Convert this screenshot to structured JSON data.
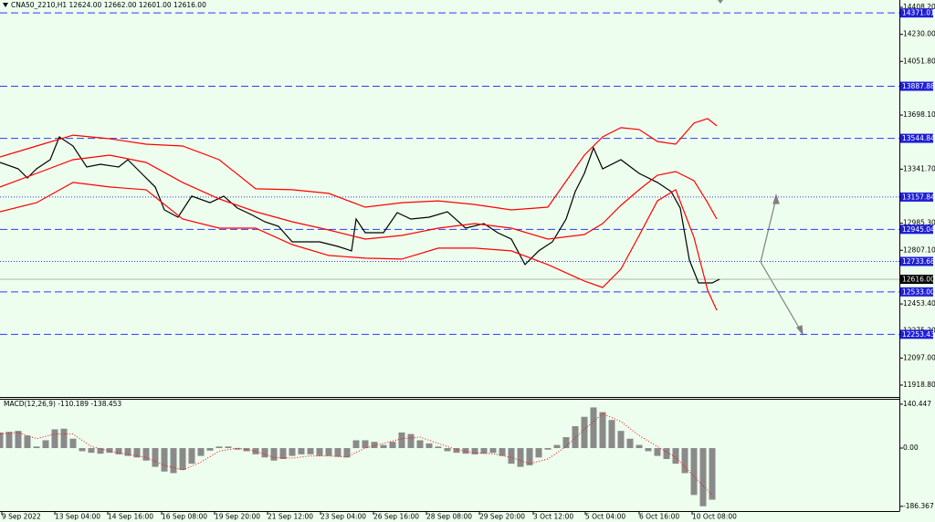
{
  "chart_data": [
    {
      "type": "line",
      "title": "CNA50_2210,H1 12624.00 12662.00 12601.00 12616.00",
      "xlim": [
        0,
        246.25
      ],
      "xticks": [
        {
          "value": 0.5,
          "label": "9 Sep 2022"
        },
        {
          "value": 15,
          "label": "13 Sep 04:00"
        },
        {
          "value": 29.5,
          "label": "14 Sep 16:00"
        },
        {
          "value": 44.25,
          "label": "16 Sep 08:00"
        },
        {
          "value": 58.75,
          "label": "19 Sep 20:00"
        },
        {
          "value": 73.25,
          "label": "21 Sep 12:00"
        },
        {
          "value": 87.75,
          "label": "23 Sep 04:00"
        },
        {
          "value": 102.25,
          "label": "26 Sep 16:00"
        },
        {
          "value": 116.75,
          "label": "28 Sep 08:00"
        },
        {
          "value": 131.25,
          "label": "29 Sep 20:00"
        },
        {
          "value": 146,
          "label": "3 Oct 12:00"
        },
        {
          "value": 160.25,
          "label": "5 Oct 04:00"
        },
        {
          "value": 175,
          "label": "6 Oct 16:00"
        },
        {
          "value": 189.5,
          "label": "10 Oct 08:00"
        }
      ],
      "ylim": [
        11840.5,
        14456.3
      ],
      "yticks": [
        {
          "value": 14408.2,
          "label": "14408.20"
        },
        {
          "value": 14230,
          "label": "14230.00"
        },
        {
          "value": 14051.8,
          "label": "14051.80"
        },
        {
          "value": 13698.1,
          "label": "13698.10"
        },
        {
          "value": 13341.7,
          "label": "13341.70"
        },
        {
          "value": 12985.3,
          "label": "12985.30"
        },
        {
          "value": 12807.1,
          "label": "12807.10"
        },
        {
          "value": 12453.4,
          "label": "12453.40"
        },
        {
          "value": 12275.2,
          "label": "12275.20"
        },
        {
          "value": 12097,
          "label": "12097.00"
        },
        {
          "value": 11918.8,
          "label": "11918.80"
        }
      ],
      "series": [
        {
          "color": "#000000",
          "style": "solid",
          "x": [
            0,
            5,
            7.5,
            10,
            13.75,
            16.25,
            20,
            23.75,
            27.5,
            32.5,
            35,
            38.75,
            42.5,
            45,
            48.75,
            52.5,
            57.5,
            61.25,
            65,
            68.75,
            72.5,
            76.25,
            80,
            87.5,
            92.5,
            96.25,
            97.5,
            100,
            105,
            108.75,
            112.5,
            117.5,
            122.5,
            127.5,
            132.5,
            136.25,
            140,
            143.75,
            147.5,
            151.25,
            155,
            157.5,
            160,
            162.5,
            165,
            170,
            175,
            180,
            183.75,
            186.25,
            188.75,
            191.25,
            195,
            197
          ],
          "values": [
            13386,
            13344,
            13284,
            13344,
            13404,
            13554,
            13494,
            13356,
            13374,
            13356,
            13404,
            13314,
            13224,
            13073,
            13025,
            13164,
            13121,
            13164,
            13085,
            13043,
            12995,
            12965,
            12863,
            12863,
            12833,
            12803,
            13013,
            12923,
            12923,
            13055,
            13013,
            13025,
            13061,
            12953,
            12983,
            12923,
            12881,
            12713,
            12803,
            12863,
            13013,
            13194,
            13314,
            13482,
            13344,
            13404,
            13314,
            13254,
            13194,
            13085,
            12743,
            12592,
            12592,
            12616
          ]
        },
        {
          "color": "#ff0000",
          "style": "solid",
          "x": [
            0,
            10,
            20,
            30,
            40,
            50,
            60,
            70,
            80,
            90,
            100,
            110,
            120,
            130,
            140,
            150,
            160,
            165,
            170,
            175,
            180,
            185,
            190,
            193.75,
            196.25
          ],
          "values": [
            13422,
            13494,
            13566,
            13542,
            13506,
            13494,
            13404,
            13212,
            13206,
            13182,
            13091,
            13121,
            13133,
            13109,
            13073,
            13091,
            13434,
            13554,
            13615,
            13603,
            13524,
            13506,
            13645,
            13675,
            13627
          ]
        },
        {
          "color": "#ff0000",
          "style": "solid",
          "x": [
            0,
            10,
            20,
            30,
            40,
            50,
            60,
            70,
            80,
            90,
            100,
            110,
            120,
            130,
            140,
            150,
            160,
            165,
            170,
            175,
            180,
            185,
            190,
            193.75,
            196.25
          ],
          "values": [
            13224,
            13314,
            13404,
            13434,
            13386,
            13254,
            13146,
            13061,
            12995,
            12941,
            12881,
            12905,
            12953,
            12983,
            12953,
            12881,
            12911,
            12983,
            13103,
            13206,
            13302,
            13326,
            13266,
            13121,
            13013
          ]
        },
        {
          "color": "#ff0000",
          "style": "solid",
          "x": [
            0,
            10,
            20,
            30,
            40,
            50,
            60,
            70,
            80,
            90,
            100,
            110,
            120,
            130,
            140,
            150,
            160,
            165,
            170,
            175,
            180,
            185,
            190,
            193.75,
            196.25
          ],
          "values": [
            13061,
            13121,
            13254,
            13224,
            13206,
            13013,
            12953,
            12953,
            12845,
            12773,
            12755,
            12749,
            12821,
            12821,
            12803,
            12713,
            12604,
            12562,
            12683,
            12905,
            13133,
            13206,
            12893,
            12544,
            12412
          ]
        }
      ],
      "levels": [
        {
          "value": 14371.01,
          "label": "14371.01",
          "style": "dashed"
        },
        {
          "value": 13887.88,
          "label": "13887.88",
          "style": "dashed"
        },
        {
          "value": 13544.84,
          "label": "13544.84",
          "style": "dashed"
        },
        {
          "value": 13157.84,
          "label": "13157.84",
          "style": "dotted"
        },
        {
          "value": 12945.04,
          "label": "12945.04",
          "style": "dashed"
        },
        {
          "value": 12733.68,
          "label": "12733.68",
          "style": "dotted"
        },
        {
          "value": 12616,
          "label": "12616.00",
          "style": "price"
        },
        {
          "value": 12533,
          "label": "12533.00",
          "style": "dashed"
        },
        {
          "value": 12253.43,
          "label": "12253.43",
          "style": "dashed"
        }
      ]
    },
    {
      "type": "bar",
      "title": "MACD(12,26,9) -110.189 -138.453",
      "xlim": [
        0,
        246.25
      ],
      "ylim": [
        -201.3,
        157.6
      ],
      "yticks": [
        {
          "value": 140.447,
          "label": "140.447"
        },
        {
          "value": 0,
          "label": "0.00"
        },
        {
          "value": -186.367,
          "label": "-186.367"
        }
      ],
      "series": [
        {
          "type": "bar",
          "color": "#8a8a8a",
          "x": [
            0,
            2.5,
            5,
            7.5,
            10,
            12.5,
            15,
            17.5,
            20,
            22.5,
            25,
            27.5,
            30,
            32.5,
            35,
            37.5,
            40,
            42.5,
            45,
            47.5,
            50,
            52.5,
            55,
            57.5,
            60,
            62.5,
            65,
            67.5,
            70,
            72.5,
            75,
            77.5,
            80,
            82.5,
            85,
            87.5,
            90,
            92.5,
            95,
            97.5,
            100,
            102.5,
            105,
            107.5,
            110,
            112.5,
            115,
            117.5,
            120,
            122.5,
            125,
            127.5,
            130,
            132.5,
            135,
            137.5,
            140,
            142.5,
            145,
            147.5,
            150,
            152.5,
            155,
            157.5,
            160,
            162.5,
            165,
            167.5,
            170,
            172.5,
            175,
            177.5,
            180,
            182.5,
            185,
            187.5,
            190,
            192.5,
            195
          ],
          "values": [
            50,
            52,
            55,
            40,
            5,
            25,
            60,
            62,
            30,
            -10,
            -15,
            -18,
            -15,
            -20,
            -25,
            -30,
            -40,
            -60,
            -75,
            -80,
            -70,
            -50,
            -25,
            -8,
            5,
            5,
            -5,
            -10,
            -20,
            -30,
            -40,
            -35,
            -25,
            -20,
            -20,
            -25,
            -25,
            -28,
            -30,
            25,
            25,
            20,
            10,
            20,
            50,
            45,
            25,
            15,
            5,
            -10,
            -15,
            -18,
            -20,
            -18,
            -15,
            -25,
            -50,
            -60,
            -55,
            -30,
            -5,
            10,
            35,
            70,
            100,
            130,
            115,
            90,
            55,
            30,
            10,
            -10,
            -25,
            -35,
            -50,
            -80,
            -150,
            -186,
            -165
          ]
        },
        {
          "type": "line",
          "color": "#ff0000",
          "style": "dotted",
          "x": [
            0,
            5,
            10,
            15,
            20,
            25,
            30,
            35,
            40,
            45,
            50,
            55,
            60,
            65,
            70,
            75,
            80,
            85,
            90,
            95,
            100,
            105,
            110,
            115,
            120,
            125,
            130,
            135,
            140,
            145,
            150,
            155,
            160,
            165,
            170,
            175,
            180,
            185,
            190,
            195
          ],
          "values": [
            45,
            50,
            30,
            45,
            45,
            5,
            -10,
            -20,
            -30,
            -55,
            -70,
            -45,
            -10,
            0,
            -10,
            -30,
            -32,
            -25,
            -25,
            -28,
            0,
            15,
            30,
            35,
            15,
            -5,
            -15,
            -18,
            -30,
            -50,
            -35,
            5,
            60,
            110,
            85,
            40,
            5,
            -30,
            -90,
            -150
          ]
        }
      ]
    }
  ]
}
